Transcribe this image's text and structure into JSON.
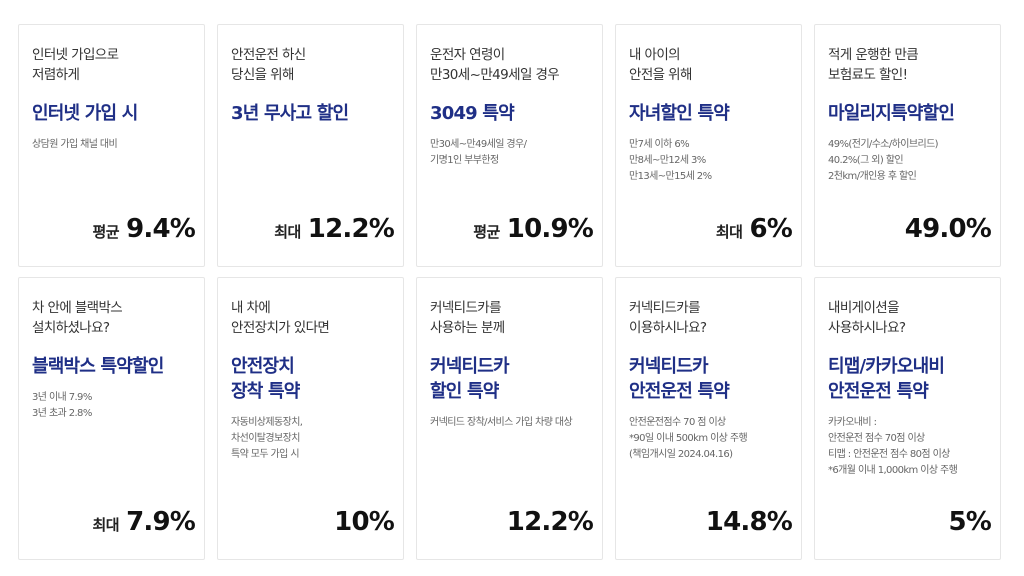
{
  "cards": [
    {
      "caption": "인터넷 가입으로\n저렴하게",
      "title": "인터넷 가입 시",
      "desc": "상담원 가입 채널 대비",
      "prefix": "평균",
      "value": "9.4%"
    },
    {
      "caption": "안전운전 하신\n당신을 위해",
      "title": "3년 무사고 할인",
      "desc": "",
      "prefix": "최대",
      "value": "12.2%"
    },
    {
      "caption": "운전자 연령이\n만30세~만49세일 경우",
      "title": "3049 특약",
      "desc": "만30세~만49세일 경우/\n기명1인 부부한정",
      "prefix": "평균",
      "value": "10.9%"
    },
    {
      "caption": "내 아이의\n안전을 위해",
      "title": "자녀할인 특약",
      "desc": "만7세 이하 6%\n만8세~만12세 3%\n만13세~만15세 2%",
      "prefix": "최대",
      "value": "6%"
    },
    {
      "caption": "적게 운행한 만큼\n보험료도 할인!",
      "title": "마일리지특약할인",
      "desc": "49%(전기/수소/하이브리드)\n40.2%(그 외) 할인\n2천km/개인용 후 할인",
      "prefix": "",
      "value": "49.0%"
    },
    {
      "caption": "차 안에 블랙박스\n설치하셨나요?",
      "title": "블랙박스 특약할인",
      "desc": "3년 이내 7.9%\n3년 초과 2.8%",
      "prefix": "최대",
      "value": "7.9%"
    },
    {
      "caption": "내 차에\n안전장치가 있다면",
      "title": "안전장치\n장착 특약",
      "desc": "자동비상제동장치,\n차선이탈경보장치\n특약 모두 가입 시",
      "prefix": "",
      "value": "10%"
    },
    {
      "caption": "커넥티드카를\n사용하는 분께",
      "title": "커넥티드카\n할인 특약",
      "desc": "커넥티드 장착/서비스 가입 차량 대상",
      "prefix": "",
      "value": "12.2%"
    },
    {
      "caption": "커넥티드카를\n이용하시나요?",
      "title": "커넥티드카\n안전운전 특약",
      "desc": "안전운전점수 70 점 이상\n*90일 이내 500km 이상 주행\n(책임개시일 2024.04.16)",
      "prefix": "",
      "value": "14.8%"
    },
    {
      "caption": "내비게이션을\n사용하시나요?",
      "title": "티맵/카카오내비\n안전운전 특약",
      "desc": "카카오내비 :\n안전운전 점수 70점 이상\n티맵 : 안전운전 점수 80점 이상\n*6개월 이내 1,000km 이상 주행",
      "prefix": "",
      "value": "5%"
    }
  ]
}
